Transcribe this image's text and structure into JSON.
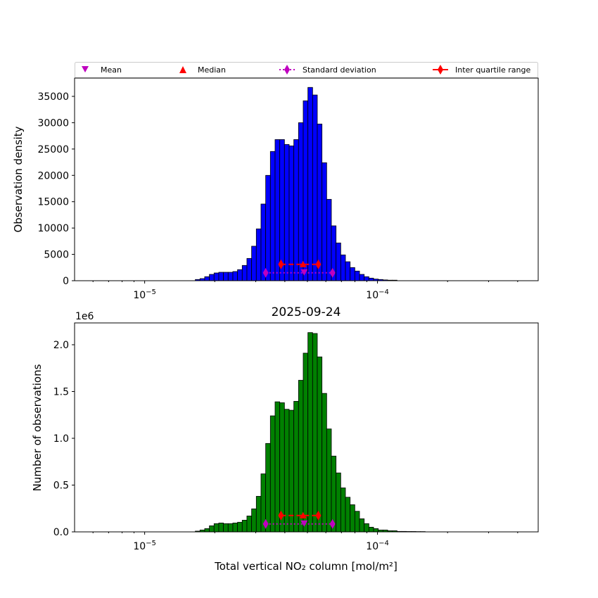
{
  "legend": {
    "mean": "Mean",
    "median": "Median",
    "std": "Standard deviation",
    "iqr": "Inter quartile range"
  },
  "colors": {
    "top_bars": "#0000ff",
    "bottom_bars": "#008000",
    "mean": "#bf00bf",
    "median": "#ff0000",
    "std": "#bf00bf",
    "iqr": "#ff0000"
  },
  "chart_data": [
    {
      "type": "bar",
      "scale_x": "log",
      "xlim": [
        5e-06,
        0.00049
      ],
      "ylim": [
        0,
        38470
      ],
      "ylabel": "Observation density",
      "xlabel": "",
      "x_ticks": [
        1e-05,
        0.0001
      ],
      "x_tick_labels": [
        {
          "base": "10",
          "exp": "−5"
        },
        {
          "base": "10",
          "exp": "−4"
        }
      ],
      "y_ticks": [
        0,
        5000,
        10000,
        15000,
        20000,
        25000,
        30000,
        35000
      ],
      "y_tick_labels": [
        "0",
        "5000",
        "10000",
        "15000",
        "20000",
        "25000",
        "30000",
        "35000"
      ],
      "bin_log10_start": -4.7825,
      "bin_log10_width": 0.02015,
      "values": [
        230,
        400,
        760,
        1200,
        1470,
        1600,
        1600,
        1600,
        1740,
        2100,
        2900,
        4230,
        6550,
        9840,
        14560,
        20000,
        24540,
        26800,
        26800,
        25870,
        25600,
        26800,
        30000,
        34160,
        36700,
        35260,
        29750,
        22400,
        15450,
        10420,
        7170,
        4900,
        3600,
        2500,
        1830,
        1200,
        760,
        490,
        310,
        230,
        150,
        100,
        100
      ],
      "stats": {
        "mean": 4.84e-05,
        "median": 4.79e-05,
        "std_range": [
          3.31e-05,
          6.41e-05
        ],
        "iqr_range": [
          3.85e-05,
          5.57e-05
        ],
        "std_y": 1500,
        "iqr_y": 3100
      }
    },
    {
      "type": "bar",
      "scale_x": "log",
      "title": "2025-09-24",
      "xlim": [
        5e-06,
        0.00049
      ],
      "ylim": [
        0,
        2.233
      ],
      "offset_text": "1e6",
      "ylabel": "Number of observations",
      "xlabel": "Total vertical NO₂ column [mol/m²]",
      "x_ticks": [
        1e-05,
        0.0001
      ],
      "x_tick_labels": [
        {
          "base": "10",
          "exp": "−5"
        },
        {
          "base": "10",
          "exp": "−4"
        }
      ],
      "y_ticks": [
        0,
        0.5,
        1.0,
        1.5,
        2.0
      ],
      "y_tick_labels": [
        "0.0",
        "0.5",
        "1.0",
        "1.5",
        "2.0"
      ],
      "bin_log10_start": -4.7825,
      "bin_log10_width": 0.02015,
      "values": [
        0.008,
        0.02,
        0.035,
        0.065,
        0.088,
        0.095,
        0.088,
        0.088,
        0.095,
        0.103,
        0.125,
        0.17,
        0.246,
        0.38,
        0.62,
        0.945,
        1.24,
        1.39,
        1.38,
        1.31,
        1.3,
        1.395,
        1.62,
        1.91,
        2.13,
        2.12,
        1.87,
        1.48,
        1.1,
        0.81,
        0.63,
        0.47,
        0.37,
        0.29,
        0.22,
        0.14,
        0.088,
        0.05,
        0.035,
        0.02,
        0.02,
        0.012,
        0.012,
        0.005,
        0.005,
        0.004,
        0.004,
        0.003,
        0.003
      ],
      "stats": {
        "mean": 4.84e-05,
        "median": 4.79e-05,
        "std_range": [
          3.31e-05,
          6.41e-05
        ],
        "iqr_range": [
          3.85e-05,
          5.57e-05
        ],
        "std_y": 0.085,
        "iqr_y": 0.175
      }
    }
  ]
}
